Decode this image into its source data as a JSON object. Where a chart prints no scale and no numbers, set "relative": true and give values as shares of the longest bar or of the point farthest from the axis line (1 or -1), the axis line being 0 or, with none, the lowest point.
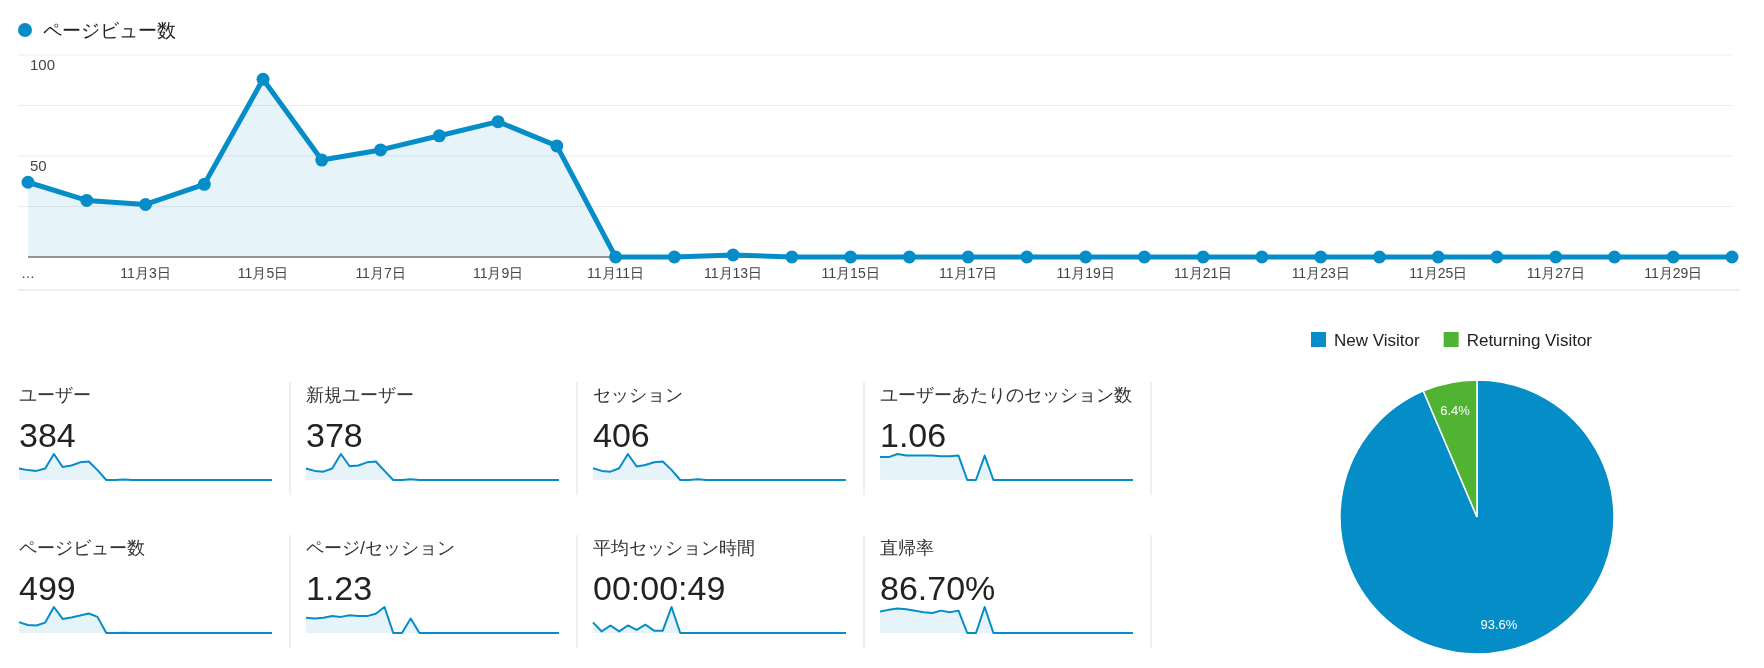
{
  "chart_data": [
    {
      "type": "area",
      "categories": [
        "…",
        null,
        "11月3日",
        null,
        "11月5日",
        null,
        "11月7日",
        null,
        "11月9日",
        null,
        "11月11日",
        null,
        "11月13日",
        null,
        "11月15日",
        null,
        "11月17日",
        null,
        "11月19日",
        null,
        "11月21日",
        null,
        "11月23日",
        null,
        "11月25日",
        null,
        "11月27日",
        null,
        "11月29日",
        null
      ],
      "series": [
        {
          "name": "ページビュー数",
          "color": "#058dc7",
          "values": [
            37,
            28,
            26,
            36,
            88,
            48,
            53,
            60,
            67,
            55,
            0,
            0,
            1,
            0,
            0,
            0,
            0,
            0,
            0,
            0,
            0,
            0,
            0,
            0,
            0,
            0,
            0,
            0,
            0,
            0
          ]
        }
      ],
      "ylim": [
        0,
        100
      ],
      "yticks": [
        {
          "value": 25,
          "label": null
        },
        50,
        {
          "value": 75,
          "label": null
        },
        100
      ],
      "grid": "y",
      "legend": "top left",
      "marker": "circle"
    },
    {
      "type": "area",
      "title": "ユーザー",
      "annotations": [
        "384"
      ],
      "relative": true,
      "color": "#058dc7",
      "categories": [
        null,
        null,
        null,
        null,
        null,
        null,
        null,
        null,
        null,
        null,
        null,
        null,
        null,
        null,
        null,
        null,
        null,
        null,
        null,
        null,
        null,
        null,
        null,
        null,
        null,
        null,
        null,
        null,
        null,
        null
      ],
      "values": [
        0.44,
        0.38,
        0.35,
        0.44,
        1,
        0.5,
        0.56,
        0.68,
        0.71,
        0.38,
        0,
        0,
        0.02,
        0,
        0,
        0,
        0,
        0,
        0,
        0,
        0,
        0,
        0,
        0,
        0,
        0,
        0,
        0,
        0,
        0
      ]
    },
    {
      "type": "area",
      "title": "新規ユーザー",
      "annotations": [
        "378"
      ],
      "relative": true,
      "color": "#058dc7",
      "categories": [
        null,
        null,
        null,
        null,
        null,
        null,
        null,
        null,
        null,
        null,
        null,
        null,
        null,
        null,
        null,
        null,
        null,
        null,
        null,
        null,
        null,
        null,
        null,
        null,
        null,
        null,
        null,
        null,
        null,
        null
      ],
      "values": [
        0.44,
        0.35,
        0.32,
        0.44,
        1,
        0.53,
        0.56,
        0.68,
        0.71,
        0.35,
        0,
        0,
        0.03,
        0,
        0,
        0,
        0,
        0,
        0,
        0,
        0,
        0,
        0,
        0,
        0,
        0,
        0,
        0,
        0,
        0
      ]
    },
    {
      "type": "area",
      "title": "セッション",
      "annotations": [
        "406"
      ],
      "relative": true,
      "color": "#058dc7",
      "categories": [
        null,
        null,
        null,
        null,
        null,
        null,
        null,
        null,
        null,
        null,
        null,
        null,
        null,
        null,
        null,
        null,
        null,
        null,
        null,
        null,
        null,
        null,
        null,
        null,
        null,
        null,
        null,
        null,
        null,
        null
      ],
      "values": [
        0.45,
        0.35,
        0.32,
        0.45,
        1,
        0.52,
        0.58,
        0.68,
        0.71,
        0.39,
        0,
        0,
        0.03,
        0,
        0,
        0,
        0,
        0,
        0,
        0,
        0,
        0,
        0,
        0,
        0,
        0,
        0,
        0,
        0,
        0
      ]
    },
    {
      "type": "area",
      "title": "ユーザーあたりのセッション数",
      "annotations": [
        "1.06"
      ],
      "relative": true,
      "color": "#058dc7",
      "categories": [
        null,
        null,
        null,
        null,
        null,
        null,
        null,
        null,
        null,
        null,
        null,
        null,
        null,
        null,
        null,
        null,
        null,
        null,
        null,
        null,
        null,
        null,
        null,
        null,
        null,
        null,
        null,
        null,
        null,
        null
      ],
      "values": [
        0.88,
        0.88,
        1,
        0.94,
        0.94,
        0.94,
        0.94,
        0.91,
        0.91,
        0.94,
        0,
        0,
        0.94,
        0,
        0,
        0,
        0,
        0,
        0,
        0,
        0,
        0,
        0,
        0,
        0,
        0,
        0,
        0,
        0,
        0
      ]
    },
    {
      "type": "area",
      "title": "ページビュー数",
      "annotations": [
        "499"
      ],
      "relative": true,
      "color": "#058dc7",
      "categories": [
        null,
        null,
        null,
        null,
        null,
        null,
        null,
        null,
        null,
        null,
        null,
        null,
        null,
        null,
        null,
        null,
        null,
        null,
        null,
        null,
        null,
        null,
        null,
        null,
        null,
        null,
        null,
        null,
        null,
        null
      ],
      "values": [
        0.42,
        0.31,
        0.29,
        0.4,
        1,
        0.54,
        0.6,
        0.67,
        0.75,
        0.62,
        0,
        0,
        0.01,
        0,
        0,
        0,
        0,
        0,
        0,
        0,
        0,
        0,
        0,
        0,
        0,
        0,
        0,
        0,
        0,
        0
      ]
    },
    {
      "type": "area",
      "title": "ページ/セッション",
      "annotations": [
        "1.23"
      ],
      "relative": true,
      "color": "#058dc7",
      "categories": [
        null,
        null,
        null,
        null,
        null,
        null,
        null,
        null,
        null,
        null,
        null,
        null,
        null,
        null,
        null,
        null,
        null,
        null,
        null,
        null,
        null,
        null,
        null,
        null,
        null,
        null,
        null,
        null,
        null,
        null
      ],
      "values": [
        0.59,
        0.56,
        0.59,
        0.65,
        0.62,
        0.68,
        0.65,
        0.65,
        0.74,
        1,
        0,
        0,
        0.56,
        0,
        0,
        0,
        0,
        0,
        0,
        0,
        0,
        0,
        0,
        0,
        0,
        0,
        0,
        0,
        0,
        0
      ]
    },
    {
      "type": "area",
      "title": "平均セッション時間",
      "annotations": [
        "00:00:49"
      ],
      "relative": true,
      "color": "#058dc7",
      "categories": [
        null,
        null,
        null,
        null,
        null,
        null,
        null,
        null,
        null,
        null,
        null,
        null,
        null,
        null,
        null,
        null,
        null,
        null,
        null,
        null,
        null,
        null,
        null,
        null,
        null,
        null,
        null,
        null,
        null,
        null
      ],
      "values": [
        0.41,
        0.06,
        0.29,
        0.06,
        0.29,
        0.12,
        0.32,
        0.09,
        0.09,
        1,
        0,
        0,
        0,
        0,
        0,
        0,
        0,
        0,
        0,
        0,
        0,
        0,
        0,
        0,
        0,
        0,
        0,
        0,
        0,
        0
      ]
    },
    {
      "type": "area",
      "title": "直帰率",
      "annotations": [
        "86.70%"
      ],
      "relative": true,
      "color": "#058dc7",
      "categories": [
        null,
        null,
        null,
        null,
        null,
        null,
        null,
        null,
        null,
        null,
        null,
        null,
        null,
        null,
        null,
        null,
        null,
        null,
        null,
        null,
        null,
        null,
        null,
        null,
        null,
        null,
        null,
        null,
        null,
        null
      ],
      "values": [
        0.83,
        0.89,
        0.94,
        0.91,
        0.86,
        0.8,
        0.77,
        0.86,
        0.8,
        0.86,
        0,
        0,
        1,
        0,
        0,
        0,
        0,
        0,
        0,
        0,
        0,
        0,
        0,
        0,
        0,
        0,
        0,
        0,
        0,
        0
      ]
    },
    {
      "type": "pie",
      "categories": [
        "New Visitor",
        "Returning Visitor"
      ],
      "values": [
        93.6,
        6.4
      ],
      "colors": [
        "#058dc7",
        "#50b432"
      ],
      "value_labels": [
        "93.6%",
        "6.4%"
      ],
      "legend": "top"
    }
  ]
}
